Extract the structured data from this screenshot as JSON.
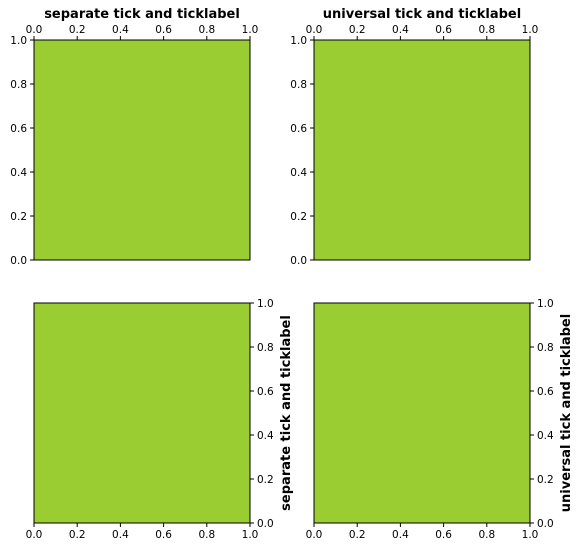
{
  "figure": {
    "background": "#ffffff",
    "axes_face_color": "#9acd32",
    "spine_color": "#000000"
  },
  "chart_data": [
    {
      "type": "blank",
      "title": "separate tick and ticklabel",
      "xlabel": "",
      "ylabel": "",
      "xlim": [
        0.0,
        1.0
      ],
      "ylim": [
        0.0,
        1.0
      ],
      "xticks": [
        0.0,
        0.2,
        0.4,
        0.6,
        0.8,
        1.0
      ],
      "yticks": [
        0.0,
        0.2,
        0.4,
        0.6,
        0.8,
        1.0
      ],
      "xtick_labels": [
        "0.0",
        "0.2",
        "0.4",
        "0.6",
        "0.8",
        "1.0"
      ],
      "ytick_labels": [
        "0.0",
        "0.2",
        "0.4",
        "0.6",
        "0.8",
        "1.0"
      ],
      "xaxis_position": "top",
      "yaxis_position": "left",
      "grid": false
    },
    {
      "type": "blank",
      "title": "universal tick and ticklabel",
      "xlabel": "",
      "ylabel": "",
      "xlim": [
        0.0,
        1.0
      ],
      "ylim": [
        0.0,
        1.0
      ],
      "xticks": [
        0.0,
        0.2,
        0.4,
        0.6,
        0.8,
        1.0
      ],
      "yticks": [
        0.0,
        0.2,
        0.4,
        0.6,
        0.8,
        1.0
      ],
      "xtick_labels": [
        "0.0",
        "0.2",
        "0.4",
        "0.6",
        "0.8",
        "1.0"
      ],
      "ytick_labels": [
        "0.0",
        "0.2",
        "0.4",
        "0.6",
        "0.8",
        "1.0"
      ],
      "xaxis_position": "top",
      "yaxis_position": "left",
      "grid": false
    },
    {
      "type": "blank",
      "title": "",
      "xlabel": "",
      "ylabel": "separate tick and ticklabel",
      "xlim": [
        0.0,
        1.0
      ],
      "ylim": [
        0.0,
        1.0
      ],
      "xticks": [
        0.0,
        0.2,
        0.4,
        0.6,
        0.8,
        1.0
      ],
      "yticks": [
        0.0,
        0.2,
        0.4,
        0.6,
        0.8,
        1.0
      ],
      "xtick_labels": [
        "0.0",
        "0.2",
        "0.4",
        "0.6",
        "0.8",
        "1.0"
      ],
      "ytick_labels": [
        "0.0",
        "0.2",
        "0.4",
        "0.6",
        "0.8",
        "1.0"
      ],
      "xaxis_position": "bottom",
      "yaxis_position": "right",
      "grid": false
    },
    {
      "type": "blank",
      "title": "",
      "xlabel": "",
      "ylabel": "universal tick and ticklabel",
      "xlim": [
        0.0,
        1.0
      ],
      "ylim": [
        0.0,
        1.0
      ],
      "xticks": [
        0.0,
        0.2,
        0.4,
        0.6,
        0.8,
        1.0
      ],
      "yticks": [
        0.0,
        0.2,
        0.4,
        0.6,
        0.8,
        1.0
      ],
      "xtick_labels": [
        "0.0",
        "0.2",
        "0.4",
        "0.6",
        "0.8",
        "1.0"
      ],
      "ytick_labels": [
        "0.0",
        "0.2",
        "0.4",
        "0.6",
        "0.8",
        "1.0"
      ],
      "xaxis_position": "bottom",
      "yaxis_position": "right",
      "grid": false
    }
  ]
}
